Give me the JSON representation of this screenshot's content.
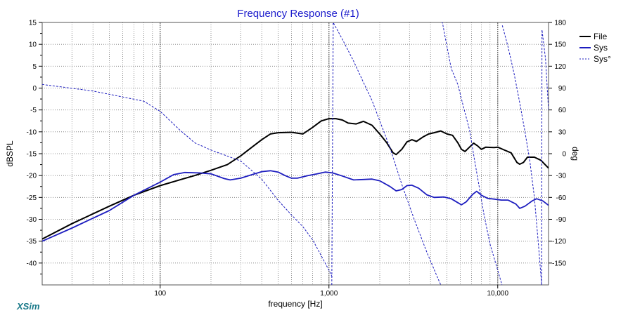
{
  "chart_data": {
    "type": "line",
    "title": "Frequency Response (#1)",
    "xlabel": "frequency [Hz]",
    "ylabel_left": "dBSPL",
    "ylabel_right": "deg",
    "x_scale": "log",
    "xlim": [
      20,
      20000
    ],
    "ylim_left": [
      -45,
      15
    ],
    "ylim_right": [
      -180,
      180
    ],
    "x_tick_labels": [
      {
        "value": 100,
        "label": "100"
      },
      {
        "value": 1000,
        "label": "1,000"
      },
      {
        "value": 10000,
        "label": "10,000"
      }
    ],
    "y_left_ticks": [
      15,
      10,
      5,
      0,
      -5,
      -10,
      -15,
      -20,
      -25,
      -30,
      -35,
      -40
    ],
    "y_right_ticks": [
      180,
      150,
      120,
      90,
      60,
      30,
      0,
      -30,
      -60,
      -90,
      -120,
      -150
    ],
    "grid": true,
    "legend_position": "top-right",
    "brand": "XSim",
    "series": [
      {
        "name": "File",
        "axis": "left",
        "color": "#000000",
        "style": "solid",
        "points": [
          [
            20,
            -34.5
          ],
          [
            30,
            -31
          ],
          [
            50,
            -27
          ],
          [
            70,
            -24.5
          ],
          [
            100,
            -22.3
          ],
          [
            130,
            -21
          ],
          [
            160,
            -20
          ],
          [
            200,
            -18.8
          ],
          [
            250,
            -17.5
          ],
          [
            300,
            -15.5
          ],
          [
            350,
            -13.5
          ],
          [
            400,
            -11.8
          ],
          [
            450,
            -10.5
          ],
          [
            500,
            -10.2
          ],
          [
            600,
            -10.1
          ],
          [
            700,
            -10.5
          ],
          [
            800,
            -9
          ],
          [
            900,
            -7.5
          ],
          [
            1000,
            -7
          ],
          [
            1100,
            -7
          ],
          [
            1200,
            -7.3
          ],
          [
            1300,
            -8
          ],
          [
            1450,
            -8.2
          ],
          [
            1600,
            -7.6
          ],
          [
            1800,
            -8.5
          ],
          [
            2000,
            -10.5
          ],
          [
            2200,
            -12.5
          ],
          [
            2400,
            -14.8
          ],
          [
            2500,
            -15.2
          ],
          [
            2700,
            -14
          ],
          [
            2900,
            -12.3
          ],
          [
            3100,
            -11.8
          ],
          [
            3300,
            -12.2
          ],
          [
            3600,
            -11.2
          ],
          [
            3900,
            -10.5
          ],
          [
            4200,
            -10.2
          ],
          [
            4600,
            -9.8
          ],
          [
            5000,
            -10.5
          ],
          [
            5400,
            -10.8
          ],
          [
            5800,
            -12.5
          ],
          [
            6100,
            -14
          ],
          [
            6400,
            -14.5
          ],
          [
            6800,
            -13.5
          ],
          [
            7200,
            -12.6
          ],
          [
            7600,
            -13.2
          ],
          [
            8000,
            -14
          ],
          [
            8500,
            -13.5
          ],
          [
            9500,
            -13.6
          ],
          [
            10000,
            -13.5
          ],
          [
            11000,
            -14.2
          ],
          [
            12000,
            -14.8
          ],
          [
            13000,
            -17
          ],
          [
            13500,
            -17.4
          ],
          [
            14200,
            -17
          ],
          [
            15000,
            -15.8
          ],
          [
            16500,
            -15.8
          ],
          [
            18000,
            -16.5
          ],
          [
            20000,
            -18.3
          ]
        ]
      },
      {
        "name": "Sys",
        "axis": "left",
        "color": "#1d1dbf",
        "style": "solid",
        "points": [
          [
            20,
            -35
          ],
          [
            30,
            -32
          ],
          [
            50,
            -28
          ],
          [
            70,
            -24.5
          ],
          [
            100,
            -21.5
          ],
          [
            120,
            -19.8
          ],
          [
            140,
            -19.3
          ],
          [
            170,
            -19.4
          ],
          [
            200,
            -19.6
          ],
          [
            240,
            -20.7
          ],
          [
            260,
            -21
          ],
          [
            300,
            -20.6
          ],
          [
            350,
            -19.8
          ],
          [
            400,
            -19.1
          ],
          [
            450,
            -18.9
          ],
          [
            500,
            -19.2
          ],
          [
            550,
            -20
          ],
          [
            600,
            -20.6
          ],
          [
            650,
            -20.6
          ],
          [
            750,
            -20
          ],
          [
            850,
            -19.6
          ],
          [
            950,
            -19.2
          ],
          [
            1050,
            -19.4
          ],
          [
            1200,
            -20.1
          ],
          [
            1400,
            -21
          ],
          [
            1600,
            -20.9
          ],
          [
            1800,
            -20.8
          ],
          [
            2000,
            -21.2
          ],
          [
            2300,
            -22.5
          ],
          [
            2500,
            -23.5
          ],
          [
            2700,
            -23.2
          ],
          [
            2900,
            -22.3
          ],
          [
            3100,
            -22.2
          ],
          [
            3400,
            -22.9
          ],
          [
            3800,
            -24.4
          ],
          [
            4200,
            -25
          ],
          [
            4800,
            -24.9
          ],
          [
            5300,
            -25.3
          ],
          [
            5800,
            -26.2
          ],
          [
            6100,
            -26.7
          ],
          [
            6500,
            -26
          ],
          [
            7100,
            -24.3
          ],
          [
            7500,
            -23.6
          ],
          [
            8000,
            -24.5
          ],
          [
            8700,
            -25.2
          ],
          [
            9600,
            -25.4
          ],
          [
            10500,
            -25.6
          ],
          [
            11500,
            -25.6
          ],
          [
            12800,
            -26.5
          ],
          [
            13500,
            -27.5
          ],
          [
            14500,
            -27
          ],
          [
            16000,
            -25.8
          ],
          [
            17000,
            -25.3
          ],
          [
            18500,
            -25.8
          ],
          [
            20000,
            -26.8
          ]
        ]
      },
      {
        "name": "Sys°",
        "axis": "right",
        "color": "#1d1dbf",
        "style": "dashed",
        "segments": [
          [
            [
              20,
              95
            ],
            [
              40,
              86
            ],
            [
              80,
              72
            ],
            [
              100,
              58
            ],
            [
              130,
              33
            ],
            [
              160,
              15
            ],
            [
              200,
              5
            ],
            [
              300,
              -10
            ],
            [
              400,
              -35
            ],
            [
              500,
              -64
            ],
            [
              600,
              -84
            ],
            [
              700,
              -100
            ],
            [
              800,
              -118
            ],
            [
              900,
              -140
            ],
            [
              1000,
              -160
            ],
            [
              1050,
              -170
            ]
          ],
          [
            [
              1040,
              -180
            ],
            [
              1060,
              180
            ],
            [
              1200,
              157
            ],
            [
              1400,
              127
            ],
            [
              1600,
              98
            ],
            [
              1800,
              73
            ],
            [
              2000,
              45
            ],
            [
              2300,
              8
            ],
            [
              2700,
              -42
            ],
            [
              3200,
              -90
            ],
            [
              3800,
              -135
            ],
            [
              4400,
              -170
            ],
            [
              4600,
              -180
            ]
          ],
          [
            [
              4630,
              180
            ],
            [
              4700,
              180
            ],
            [
              4900,
              158
            ],
            [
              5300,
              117
            ],
            [
              5800,
              95
            ],
            [
              6300,
              62
            ],
            [
              6800,
              33
            ],
            [
              7300,
              -10
            ],
            [
              7800,
              -48
            ],
            [
              8300,
              -84
            ],
            [
              9000,
              -124
            ],
            [
              10000,
              -160
            ],
            [
              10600,
              -180
            ]
          ],
          [
            [
              10650,
              176
            ],
            [
              11500,
              147
            ],
            [
              12500,
              110
            ],
            [
              13500,
              70
            ],
            [
              14500,
              30
            ],
            [
              15500,
              -10
            ],
            [
              16500,
              -60
            ],
            [
              17500,
              -130
            ],
            [
              18200,
              -180
            ]
          ],
          [
            [
              18200,
              -180
            ],
            [
              18300,
              170
            ],
            [
              19200,
              130
            ],
            [
              20000,
              60
            ]
          ]
        ]
      }
    ]
  }
}
